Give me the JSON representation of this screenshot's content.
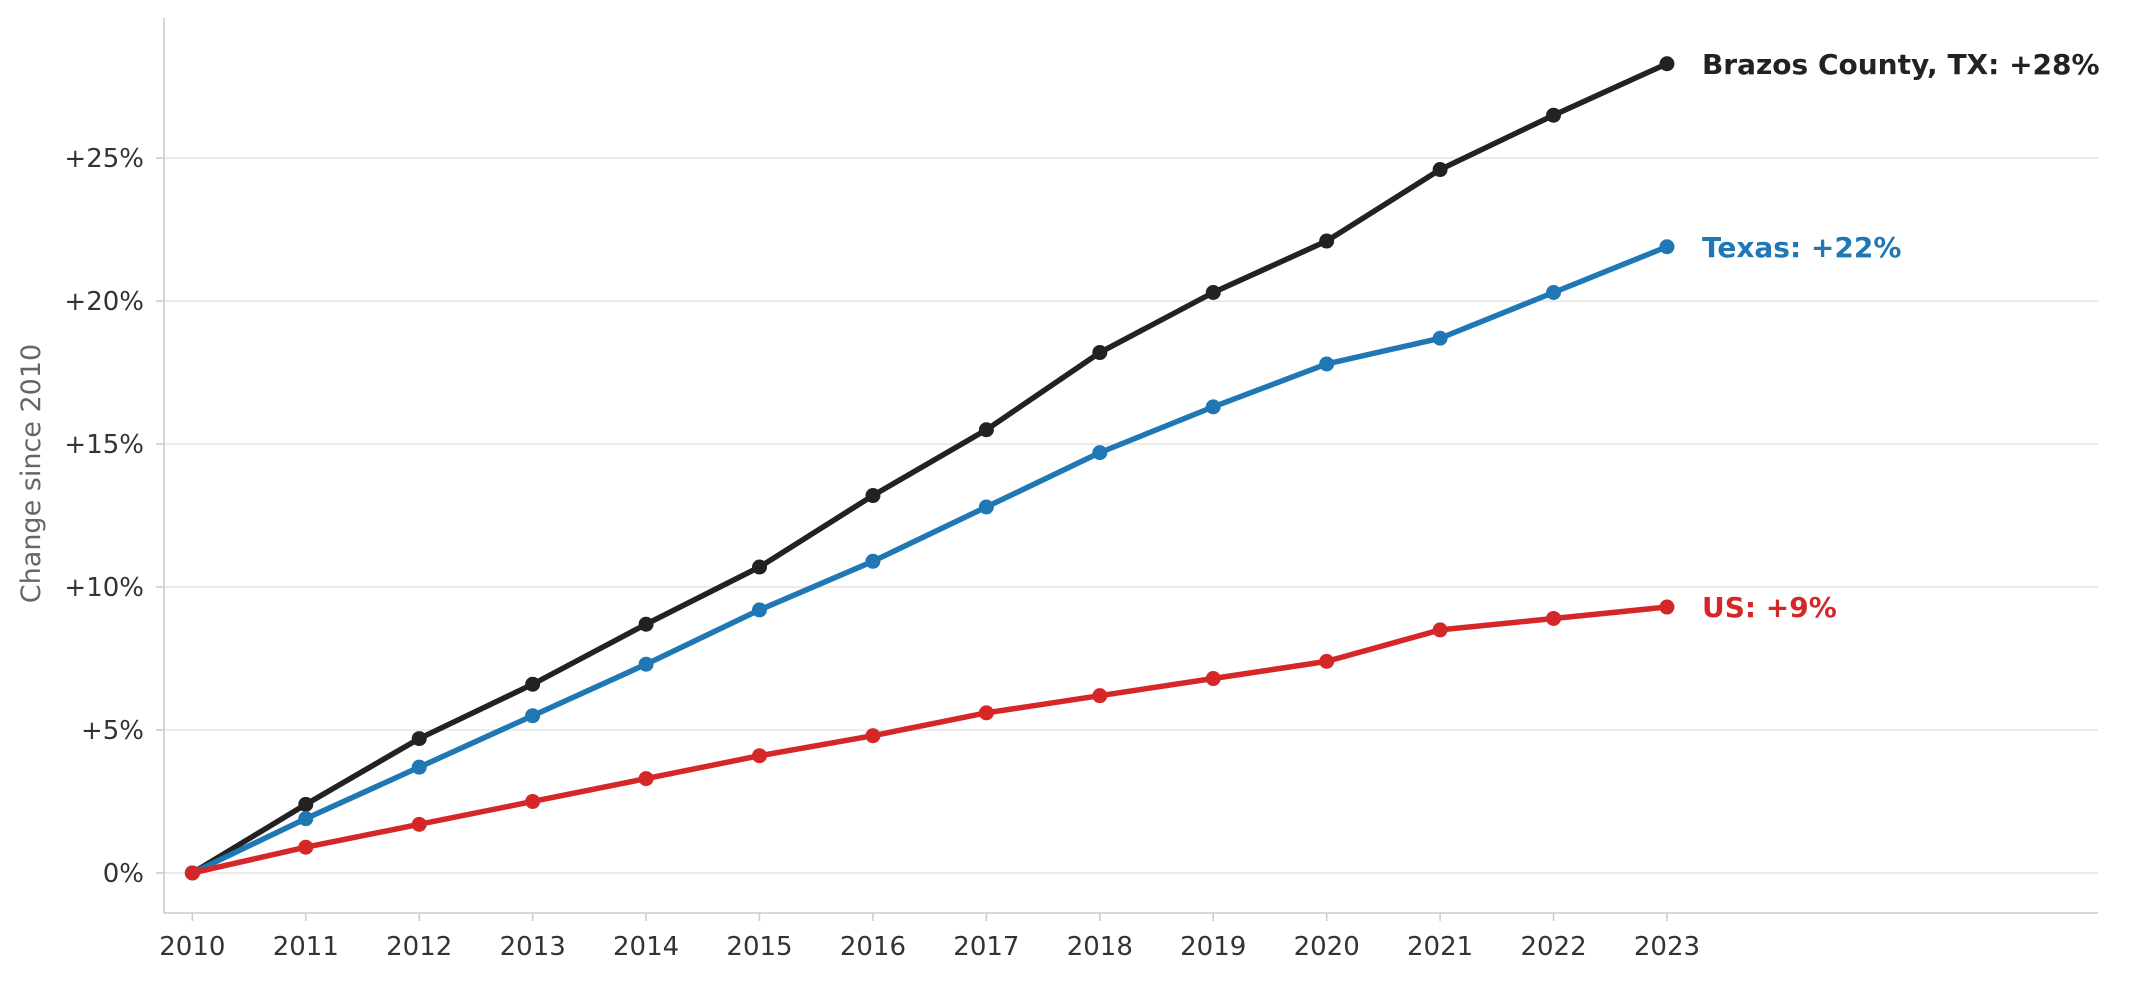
{
  "chart_data": {
    "type": "line",
    "title": "",
    "xlabel": "",
    "ylabel": "Change since 2010",
    "x": [
      2010,
      2011,
      2012,
      2013,
      2014,
      2015,
      2016,
      2017,
      2018,
      2019,
      2020,
      2021,
      2022,
      2023
    ],
    "x_ticks": [
      "2010",
      "2011",
      "2012",
      "2013",
      "2014",
      "2015",
      "2016",
      "2017",
      "2018",
      "2019",
      "2020",
      "2021",
      "2022",
      "2023"
    ],
    "xlim": [
      2009.75,
      2026.8
    ],
    "ylim": [
      -1.4,
      29.9
    ],
    "y_ticks": [
      0,
      5,
      10,
      15,
      20,
      25
    ],
    "y_tick_labels": [
      "0%",
      "+5%",
      "+10%",
      "+15%",
      "+20%",
      "+25%"
    ],
    "grid": "horizontal",
    "legend": "none",
    "series": [
      {
        "key": "brazos",
        "end_label": "Brazos County, TX: +28%",
        "color": "#222222",
        "values": [
          0,
          2.4,
          4.7,
          6.6,
          8.7,
          10.7,
          13.2,
          15.5,
          18.2,
          20.3,
          22.1,
          24.6,
          26.5,
          28.3
        ]
      },
      {
        "key": "texas",
        "end_label": "Texas: +22%",
        "color": "#1f77b4",
        "values": [
          0,
          1.9,
          3.7,
          5.5,
          7.3,
          9.2,
          10.9,
          12.8,
          14.7,
          16.3,
          17.8,
          18.7,
          20.3,
          21.9
        ]
      },
      {
        "key": "us",
        "end_label": "US: +9%",
        "color": "#d62728",
        "values": [
          0,
          0.9,
          1.7,
          2.5,
          3.3,
          4.1,
          4.8,
          5.6,
          6.2,
          6.8,
          7.4,
          8.5,
          8.9,
          9.3
        ]
      }
    ]
  }
}
